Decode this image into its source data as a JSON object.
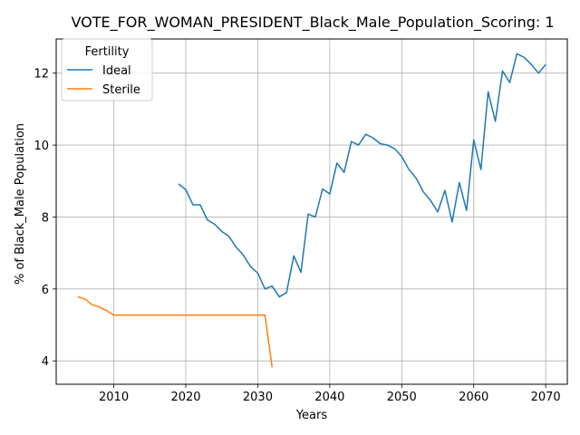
{
  "chart_data": {
    "type": "line",
    "title": "VOTE_FOR_WOMAN_PRESIDENT_Black_Male_Population_Scoring: 1",
    "xlabel": "Years",
    "ylabel": "% of Black_Male Population",
    "xlim": [
      2002,
      2073
    ],
    "ylim": [
      3.35,
      12.95
    ],
    "xticks": [
      2010,
      2020,
      2030,
      2040,
      2050,
      2060,
      2070
    ],
    "yticks": [
      4,
      6,
      8,
      10,
      12
    ],
    "grid": true,
    "legend": {
      "title": "Fertility",
      "placement": "top-left"
    },
    "series": [
      {
        "name": "Ideal",
        "color": "#1f77b4",
        "x": [
          2019,
          2020,
          2021,
          2022,
          2023,
          2024,
          2025,
          2026,
          2027,
          2028,
          2029,
          2030,
          2031,
          2032,
          2033,
          2034,
          2035,
          2036,
          2037,
          2038,
          2039,
          2040,
          2041,
          2042,
          2043,
          2044,
          2045,
          2046,
          2047,
          2048,
          2049,
          2050,
          2051,
          2052,
          2053,
          2054,
          2055,
          2056,
          2057,
          2058,
          2059,
          2060,
          2061,
          2062,
          2063,
          2064,
          2065,
          2066,
          2067,
          2068,
          2069,
          2070
        ],
        "y": [
          8.92,
          8.76,
          8.34,
          8.34,
          7.92,
          7.8,
          7.6,
          7.46,
          7.16,
          6.94,
          6.62,
          6.44,
          6.0,
          6.08,
          5.78,
          5.9,
          6.92,
          6.46,
          8.08,
          8.0,
          8.78,
          8.64,
          9.5,
          9.24,
          10.1,
          10.0,
          10.3,
          10.2,
          10.04,
          10.0,
          9.9,
          9.68,
          9.32,
          9.08,
          8.7,
          8.46,
          8.14,
          8.74,
          7.86,
          8.96,
          8.18,
          10.14,
          9.32,
          11.48,
          10.66,
          12.06,
          11.74,
          12.54,
          12.44,
          12.24,
          12.0,
          12.24
        ]
      },
      {
        "name": "Sterile",
        "color": "#ff7f0e",
        "x": [
          2005,
          2006,
          2007,
          2008,
          2009,
          2010,
          2011,
          2012,
          2013,
          2014,
          2015,
          2016,
          2017,
          2018,
          2019,
          2020,
          2021,
          2022,
          2023,
          2024,
          2025,
          2026,
          2027,
          2028,
          2029,
          2030,
          2031,
          2032
        ],
        "y": [
          5.78,
          5.72,
          5.56,
          5.5,
          5.4,
          5.27,
          5.27,
          5.27,
          5.27,
          5.27,
          5.27,
          5.27,
          5.27,
          5.27,
          5.27,
          5.27,
          5.27,
          5.27,
          5.27,
          5.27,
          5.27,
          5.27,
          5.27,
          5.27,
          5.27,
          5.27,
          5.27,
          3.82
        ]
      }
    ]
  }
}
